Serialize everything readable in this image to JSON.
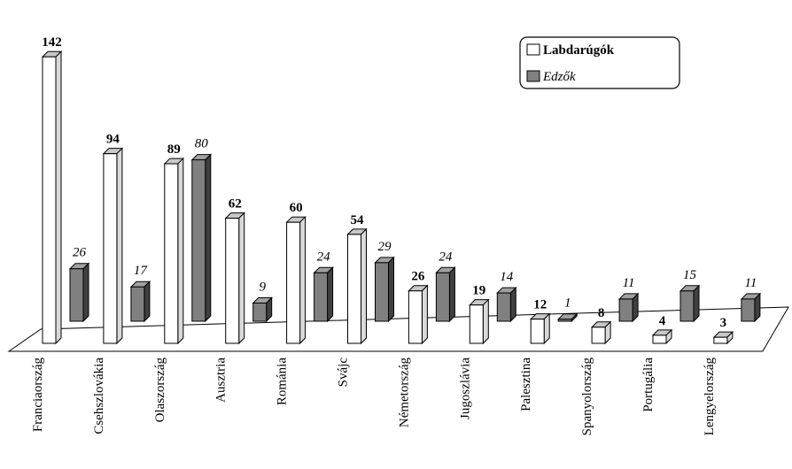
{
  "chart_data": {
    "type": "bar",
    "three_d": true,
    "categories": [
      "Franciaország",
      "Csehszlovákia",
      "Olaszország",
      "Ausztria",
      "Románia",
      "Svájc",
      "Németország",
      "Jugoszlávia",
      "Palesztina",
      "Spanyolország",
      "Portugália",
      "Lengyelország"
    ],
    "series": [
      {
        "name": "Labdarúgók",
        "values": [
          142,
          94,
          89,
          62,
          60,
          54,
          26,
          19,
          12,
          8,
          4,
          3
        ],
        "label_style": "bold"
      },
      {
        "name": "Edzők",
        "values": [
          26,
          17,
          80,
          9,
          24,
          29,
          24,
          14,
          1,
          11,
          15,
          11
        ],
        "label_style": "italic"
      }
    ],
    "legend": {
      "position": "top-right"
    },
    "grid": false,
    "colors": {
      "series1_front": "#ffffff",
      "series1_side": "#d9d9d9",
      "series1_top": "#c8c8c8",
      "series2_front": "#808080",
      "series2_side": "#404040",
      "series2_top": "#a0a0a0",
      "outline": "#000000"
    }
  }
}
